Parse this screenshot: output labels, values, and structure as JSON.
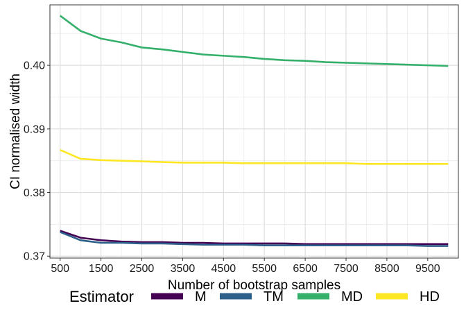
{
  "chart_data": {
    "type": "line",
    "xlabel": "Number of bootstrap samples",
    "ylabel": "CI normalised width",
    "xlim": [
      250,
      10250
    ],
    "ylim": [
      0.3697,
      0.4095
    ],
    "x_ticks": [
      500,
      1500,
      2500,
      3500,
      4500,
      5500,
      6500,
      7500,
      8500,
      9500
    ],
    "x_minor_ticks": [
      1000,
      2000,
      3000,
      4000,
      5000,
      6000,
      7000,
      8000,
      9000,
      10000
    ],
    "y_ticks": [
      0.37,
      0.38,
      0.39,
      0.4
    ],
    "y_tick_labels": [
      "0.37",
      "0.38",
      "0.39",
      "0.40"
    ],
    "y_minor_ticks": [
      0.375,
      0.385,
      0.395,
      0.405
    ],
    "grid": true,
    "legend": {
      "title": "Estimator",
      "position": "bottom"
    },
    "x": [
      500,
      1000,
      1500,
      2000,
      2500,
      3000,
      3500,
      4000,
      4500,
      5000,
      5500,
      6000,
      6500,
      7000,
      7500,
      8000,
      8500,
      9000,
      9500,
      10000
    ],
    "series": [
      {
        "name": "M",
        "color": "#440154",
        "values": [
          0.374,
          0.3729,
          0.3725,
          0.3723,
          0.3722,
          0.3722,
          0.3721,
          0.3721,
          0.372,
          0.372,
          0.372,
          0.372,
          0.3719,
          0.3719,
          0.3719,
          0.3719,
          0.3719,
          0.3719,
          0.3719,
          0.3719
        ]
      },
      {
        "name": "TM",
        "color": "#2c5f8a",
        "values": [
          0.3738,
          0.3725,
          0.3721,
          0.3721,
          0.372,
          0.372,
          0.3719,
          0.3718,
          0.3718,
          0.3718,
          0.3717,
          0.3717,
          0.3717,
          0.3717,
          0.3717,
          0.3717,
          0.3717,
          0.3717,
          0.3716,
          0.3716
        ]
      },
      {
        "name": "MD",
        "color": "#35b06b",
        "values": [
          0.4078,
          0.4054,
          0.4042,
          0.4036,
          0.4028,
          0.4025,
          0.4021,
          0.4017,
          0.4015,
          0.4013,
          0.401,
          0.4008,
          0.4007,
          0.4005,
          0.4004,
          0.4003,
          0.4002,
          0.4001,
          0.4,
          0.3999
        ]
      },
      {
        "name": "HD",
        "color": "#fde725",
        "values": [
          0.3867,
          0.3853,
          0.3851,
          0.385,
          0.3849,
          0.3848,
          0.3847,
          0.3847,
          0.3847,
          0.3846,
          0.3846,
          0.3846,
          0.3846,
          0.3846,
          0.3846,
          0.3845,
          0.3845,
          0.3845,
          0.3845,
          0.3845
        ]
      }
    ]
  }
}
